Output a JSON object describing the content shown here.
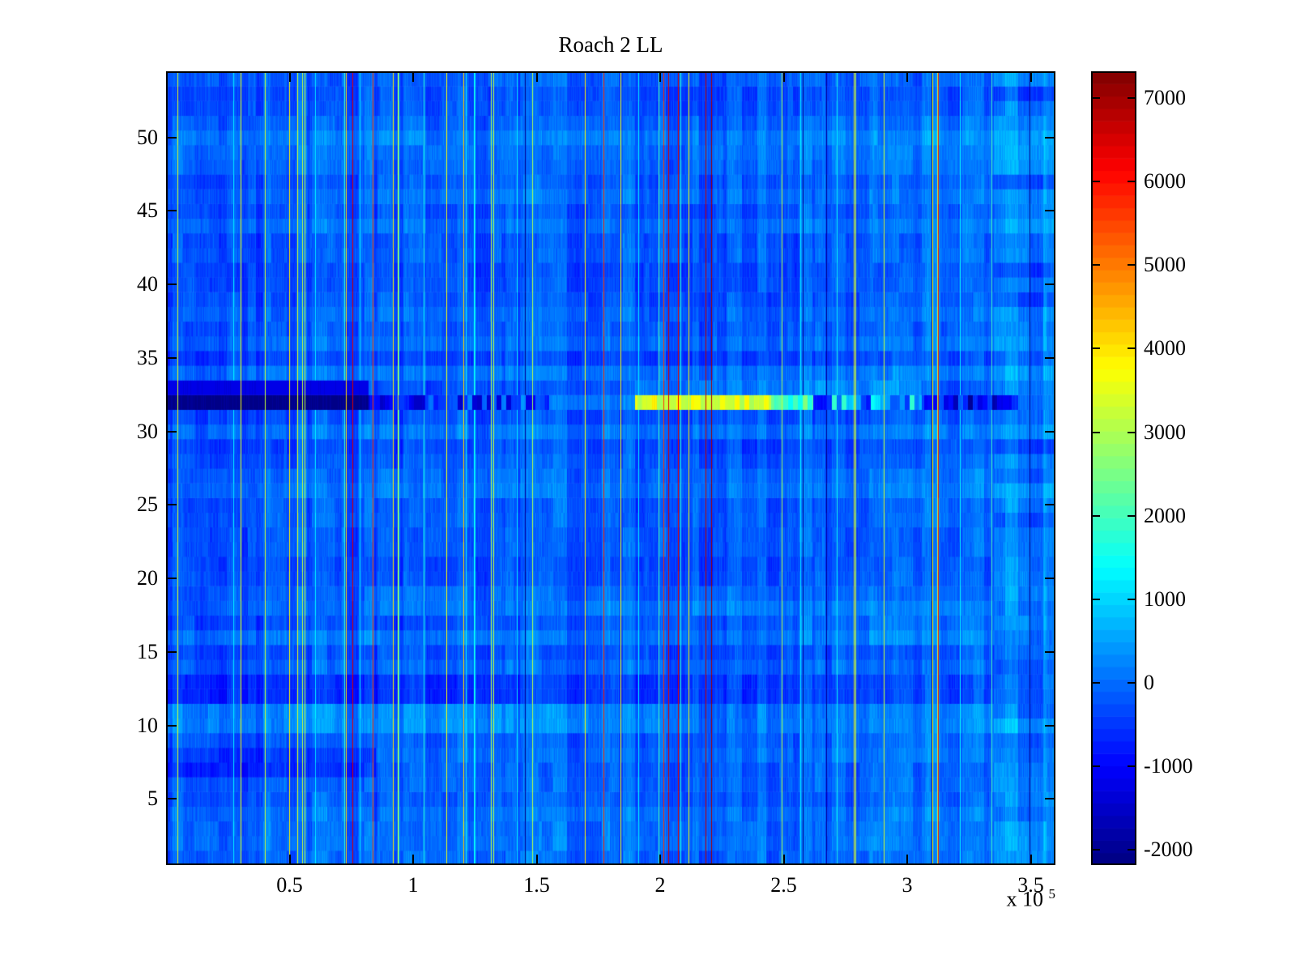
{
  "figure": {
    "background": "#ffffff",
    "axis_color": "#000000"
  },
  "chart_data": {
    "type": "heatmap",
    "title": "Roach 2 LL",
    "colormap": "jet",
    "colormap_levels": 64,
    "x": {
      "min": 0,
      "max": 360000,
      "tick_values": [
        50000,
        100000,
        150000,
        200000,
        250000,
        300000,
        350000
      ],
      "tick_labels": [
        "0.5",
        "1",
        "1.5",
        "2",
        "2.5",
        "3",
        "3.5"
      ],
      "exponent_base": "x 10",
      "exponent": "5"
    },
    "y": {
      "min": 0.5,
      "max": 54.5,
      "rows": 54,
      "tick_values": [
        5,
        10,
        15,
        20,
        25,
        30,
        35,
        40,
        45,
        50
      ],
      "tick_labels": [
        "5",
        "10",
        "15",
        "20",
        "25",
        "30",
        "35",
        "40",
        "45",
        "50"
      ]
    },
    "color_axis": {
      "min": -2180,
      "max": 7320,
      "tick_values": [
        -2000,
        -1000,
        0,
        1000,
        2000,
        3000,
        4000,
        5000,
        6000,
        7000
      ],
      "tick_labels": [
        "-2000",
        "-1000",
        "0",
        "1000",
        "2000",
        "3000",
        "4000",
        "5000",
        "6000",
        "7000"
      ]
    },
    "columns": 1098,
    "noise": {
      "seed": 1337,
      "base": -100,
      "row_offset_spread": 440,
      "row_parity_bias": 50,
      "group_offset_spread": 560,
      "group_width_min": 3,
      "group_width_max": 20,
      "col_jitter": 200,
      "block_spread": 380,
      "cell_jitter": 300,
      "x_brighten_gradient": 180,
      "line_probs": {
        "red": 0.009,
        "yellow": 0.014,
        "cyan": 0.028,
        "navy": 0.005
      },
      "line_values": {
        "red": [
          5600,
          7300
        ],
        "yellow": [
          2900,
          4200
        ],
        "cyan": [
          1150,
          2000
        ],
        "navy": [
          -2100,
          -1850
        ]
      }
    },
    "features": [
      {
        "name": "solid-dark-band",
        "row": 32,
        "x_range": [
          0,
          82000
        ],
        "value": -2060
      },
      {
        "name": "dark-band-upper-row",
        "row": 33,
        "x_range": [
          0,
          82000
        ],
        "value": -1250
      },
      {
        "name": "dark-band-tail",
        "row": 32,
        "x_range": [
          82000,
          105000
        ],
        "value_range": [
          -1700,
          -300
        ]
      },
      {
        "name": "band-intermittent",
        "row": 32,
        "x_range": [
          105000,
          155000
        ],
        "value_range": [
          -1600,
          400
        ]
      },
      {
        "name": "yellow-band",
        "row": 32,
        "x_range": [
          190000,
          245000
        ],
        "value_range": [
          2900,
          3900
        ]
      },
      {
        "name": "yellow-band-fade",
        "row": 32,
        "x_range": [
          245000,
          262000
        ],
        "value_range": [
          1400,
          2700
        ]
      },
      {
        "name": "band-mixed-cyan-dark",
        "row": 32,
        "x_range": [
          262000,
          306000
        ],
        "value_range": [
          -1000,
          1900
        ]
      },
      {
        "name": "band-dark-patches",
        "row": 32,
        "x_range": [
          306000,
          345000
        ],
        "value_range": [
          -2050,
          300
        ]
      },
      {
        "name": "row33-bright-mid",
        "row": 33,
        "x_range": [
          190000,
          306000
        ],
        "bonus": 500
      },
      {
        "name": "dark-stripe-rows-12-13",
        "rows": [
          12,
          13
        ],
        "bonus": -270
      },
      {
        "name": "dark-stripe-left-boost",
        "rows": [
          12,
          13
        ],
        "x_range": [
          0,
          150000
        ],
        "bonus": -140
      },
      {
        "name": "bright-stripe-rows-10-11",
        "rows": [
          10,
          11
        ],
        "x_range": [
          0,
          210000
        ],
        "bonus": 310
      },
      {
        "name": "bright-rows-10-11-right",
        "rows": [
          10,
          11
        ],
        "x_range": [
          210000,
          360000
        ],
        "bonus": 130
      },
      {
        "name": "dark-rows-7-8-left",
        "rows": [
          7,
          8
        ],
        "x_range": [
          0,
          85000
        ],
        "bonus": -430
      },
      {
        "name": "dark-rows-17-18-left",
        "rows": [
          17,
          18
        ],
        "x_range": [
          0,
          160000
        ],
        "bonus": -180
      },
      {
        "name": "bright-bottom-rows",
        "rows": [
          1,
          2
        ],
        "bonus": 220
      },
      {
        "name": "bright-right-edge",
        "x_range": [
          335000,
          360000
        ],
        "bonus": 400,
        "row_fraction": 0.65
      }
    ]
  }
}
